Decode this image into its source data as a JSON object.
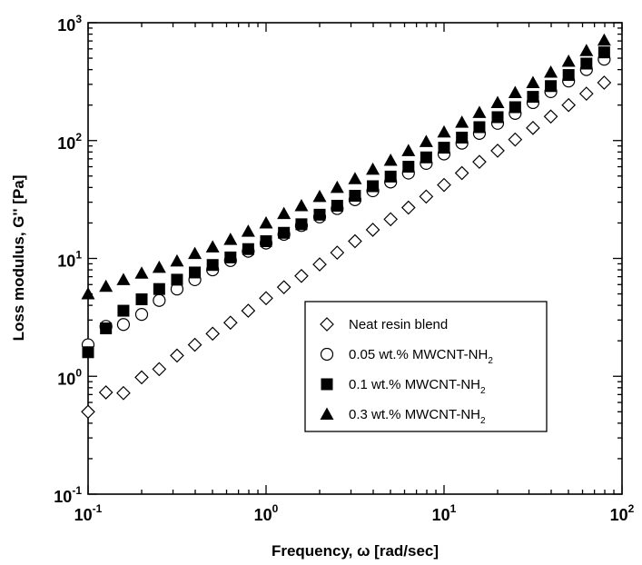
{
  "chart_data": {
    "type": "scatter",
    "title": "",
    "xlabel": "Frequency, ω [rad/sec]",
    "ylabel": "Loss modulus, G'' [Pa]",
    "xscale": "log",
    "yscale": "log",
    "xlim": [
      0.1,
      100
    ],
    "ylim": [
      0.1,
      1000
    ],
    "grid": false,
    "legend_position": "lower-right",
    "x_ticks": [
      {
        "base": "10",
        "exp": "-1",
        "value": 0.1
      },
      {
        "base": "10",
        "exp": "0",
        "value": 1
      },
      {
        "base": "10",
        "exp": "1",
        "value": 10
      },
      {
        "base": "10",
        "exp": "2",
        "value": 100
      }
    ],
    "y_ticks": [
      {
        "base": "10",
        "exp": "-1",
        "value": 0.1
      },
      {
        "base": "10",
        "exp": "0",
        "value": 1
      },
      {
        "base": "10",
        "exp": "1",
        "value": 10
      },
      {
        "base": "10",
        "exp": "2",
        "value": 100
      },
      {
        "base": "10",
        "exp": "3",
        "value": 1000
      }
    ],
    "x": [
      0.1,
      0.126,
      0.158,
      0.2,
      0.251,
      0.316,
      0.398,
      0.501,
      0.631,
      0.794,
      1.0,
      1.26,
      1.58,
      2.0,
      2.51,
      3.16,
      3.98,
      5.01,
      6.31,
      7.94,
      10.0,
      12.6,
      15.8,
      20.0,
      25.1,
      31.6,
      39.8,
      50.1,
      63.1,
      79.4
    ],
    "series": [
      {
        "name": "Neat resin blend",
        "name_sub": "",
        "marker": "diamond-open",
        "values": [
          0.5,
          0.73,
          0.72,
          0.98,
          1.15,
          1.5,
          1.85,
          2.3,
          2.85,
          3.6,
          4.6,
          5.7,
          7.1,
          8.9,
          11.2,
          14.0,
          17.5,
          21.5,
          27.0,
          33.5,
          42.0,
          53.0,
          66.0,
          82.0,
          102.0,
          128.0,
          160.0,
          200.0,
          250.0,
          310.0
        ]
      },
      {
        "name": "0.05 wt.% MWCNT-NH",
        "name_sub": "2",
        "marker": "circle-open",
        "values": [
          1.85,
          2.65,
          2.75,
          3.35,
          4.4,
          5.5,
          6.6,
          8.0,
          9.6,
          11.5,
          13.5,
          16.0,
          19.0,
          22.5,
          26.5,
          31.5,
          37.5,
          44.5,
          53.0,
          64.0,
          77.0,
          95.0,
          115.0,
          140.0,
          170.0,
          210.0,
          260.0,
          320.0,
          400.0,
          490.0
        ]
      },
      {
        "name": "0.1 wt.% MWCNT-NH",
        "name_sub": "2",
        "marker": "square-filled",
        "values": [
          1.6,
          2.55,
          3.6,
          4.5,
          5.5,
          6.6,
          7.6,
          8.8,
          10.2,
          12.0,
          14.0,
          16.5,
          19.5,
          23.5,
          28.0,
          34.0,
          41.0,
          49.5,
          60.0,
          72.0,
          87.0,
          106.0,
          130.0,
          158.0,
          192.0,
          235.0,
          290.0,
          360.0,
          450.0,
          560.0
        ]
      },
      {
        "name": "0.3 wt.% MWCNT-NH",
        "name_sub": "2",
        "marker": "triangle-filled",
        "values": [
          5.0,
          5.8,
          6.6,
          7.5,
          8.4,
          9.5,
          11.0,
          12.5,
          14.5,
          17.0,
          20.0,
          24.0,
          28.0,
          33.5,
          40.0,
          47.5,
          57.0,
          68.0,
          82.0,
          98.0,
          118.0,
          143.0,
          173.0,
          210.0,
          255.0,
          310.0,
          380.0,
          470.0,
          580.0,
          710.0
        ]
      }
    ]
  }
}
